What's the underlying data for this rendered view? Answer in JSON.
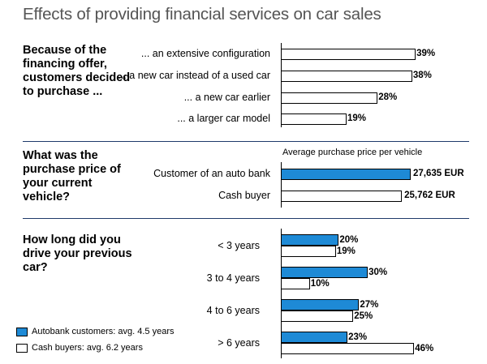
{
  "chart_data": {
    "type": "bar",
    "title": "Effects of providing financial services on car sales",
    "colors": {
      "autobank": "#1e8ad6",
      "cash": "#ffffff",
      "divider": "#1f3a6a"
    },
    "sections": [
      {
        "question": "Because of the financing offer, customers decided to purchase ...",
        "categories": [
          "... an extensive configuration",
          "... a new car instead of a used car",
          "... a new car earlier",
          "... a larger car model"
        ],
        "values": [
          39,
          38,
          28,
          19
        ],
        "labels": [
          "39%",
          "38%",
          "28%",
          "19%"
        ],
        "unit": "%"
      },
      {
        "question": "What was the purchase price of your current vehicle?",
        "subtitle": "Average purchase price per vehicle",
        "categories": [
          "Customer of an auto bank",
          "Cash buyer"
        ],
        "values": [
          27635,
          25762
        ],
        "labels": [
          "27,635 EUR",
          "25,762 EUR"
        ],
        "unit": "EUR"
      },
      {
        "question": "How long did you drive your previous car?",
        "categories": [
          "< 3 years",
          "3 to 4 years",
          "4 to 6 years",
          "> 6 years"
        ],
        "series": [
          {
            "name": "Autobank customers: avg. 4.5 years",
            "values": [
              20,
              30,
              27,
              23
            ],
            "labels": [
              "20%",
              "30%",
              "27%",
              "23%"
            ]
          },
          {
            "name": "Cash buyers: avg. 6.2 years",
            "values": [
              19,
              10,
              25,
              46
            ],
            "labels": [
              "19%",
              "10%",
              "25%",
              "46%"
            ]
          }
        ],
        "unit": "%"
      }
    ]
  }
}
